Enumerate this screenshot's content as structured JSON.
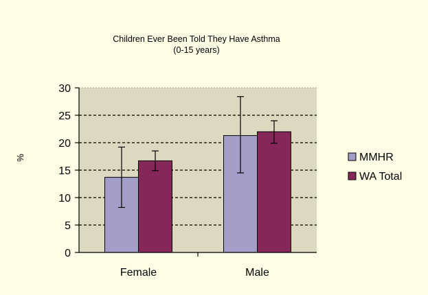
{
  "chart_data": {
    "type": "bar",
    "title": "Children Ever Been Told They Have Asthma",
    "subtitle": "(0-15 years)",
    "xlabel": "",
    "ylabel": "%",
    "categories": [
      "Female",
      "Male"
    ],
    "ylim": [
      0,
      30
    ],
    "yticks": [
      0,
      5,
      10,
      15,
      20,
      25,
      30
    ],
    "grid": true,
    "legend_position": "right",
    "plot_background": "#ddd8c0",
    "series": [
      {
        "name": "MMHR",
        "color": "#a29ec8",
        "values": [
          13.7,
          21.3
        ],
        "error_low": [
          8.2,
          14.5
        ],
        "error_high": [
          19.2,
          28.4
        ]
      },
      {
        "name": "WA Total",
        "color": "#86275a",
        "values": [
          16.7,
          22.0
        ],
        "error_low": [
          14.9,
          19.9
        ],
        "error_high": [
          18.5,
          24.0
        ]
      }
    ]
  }
}
